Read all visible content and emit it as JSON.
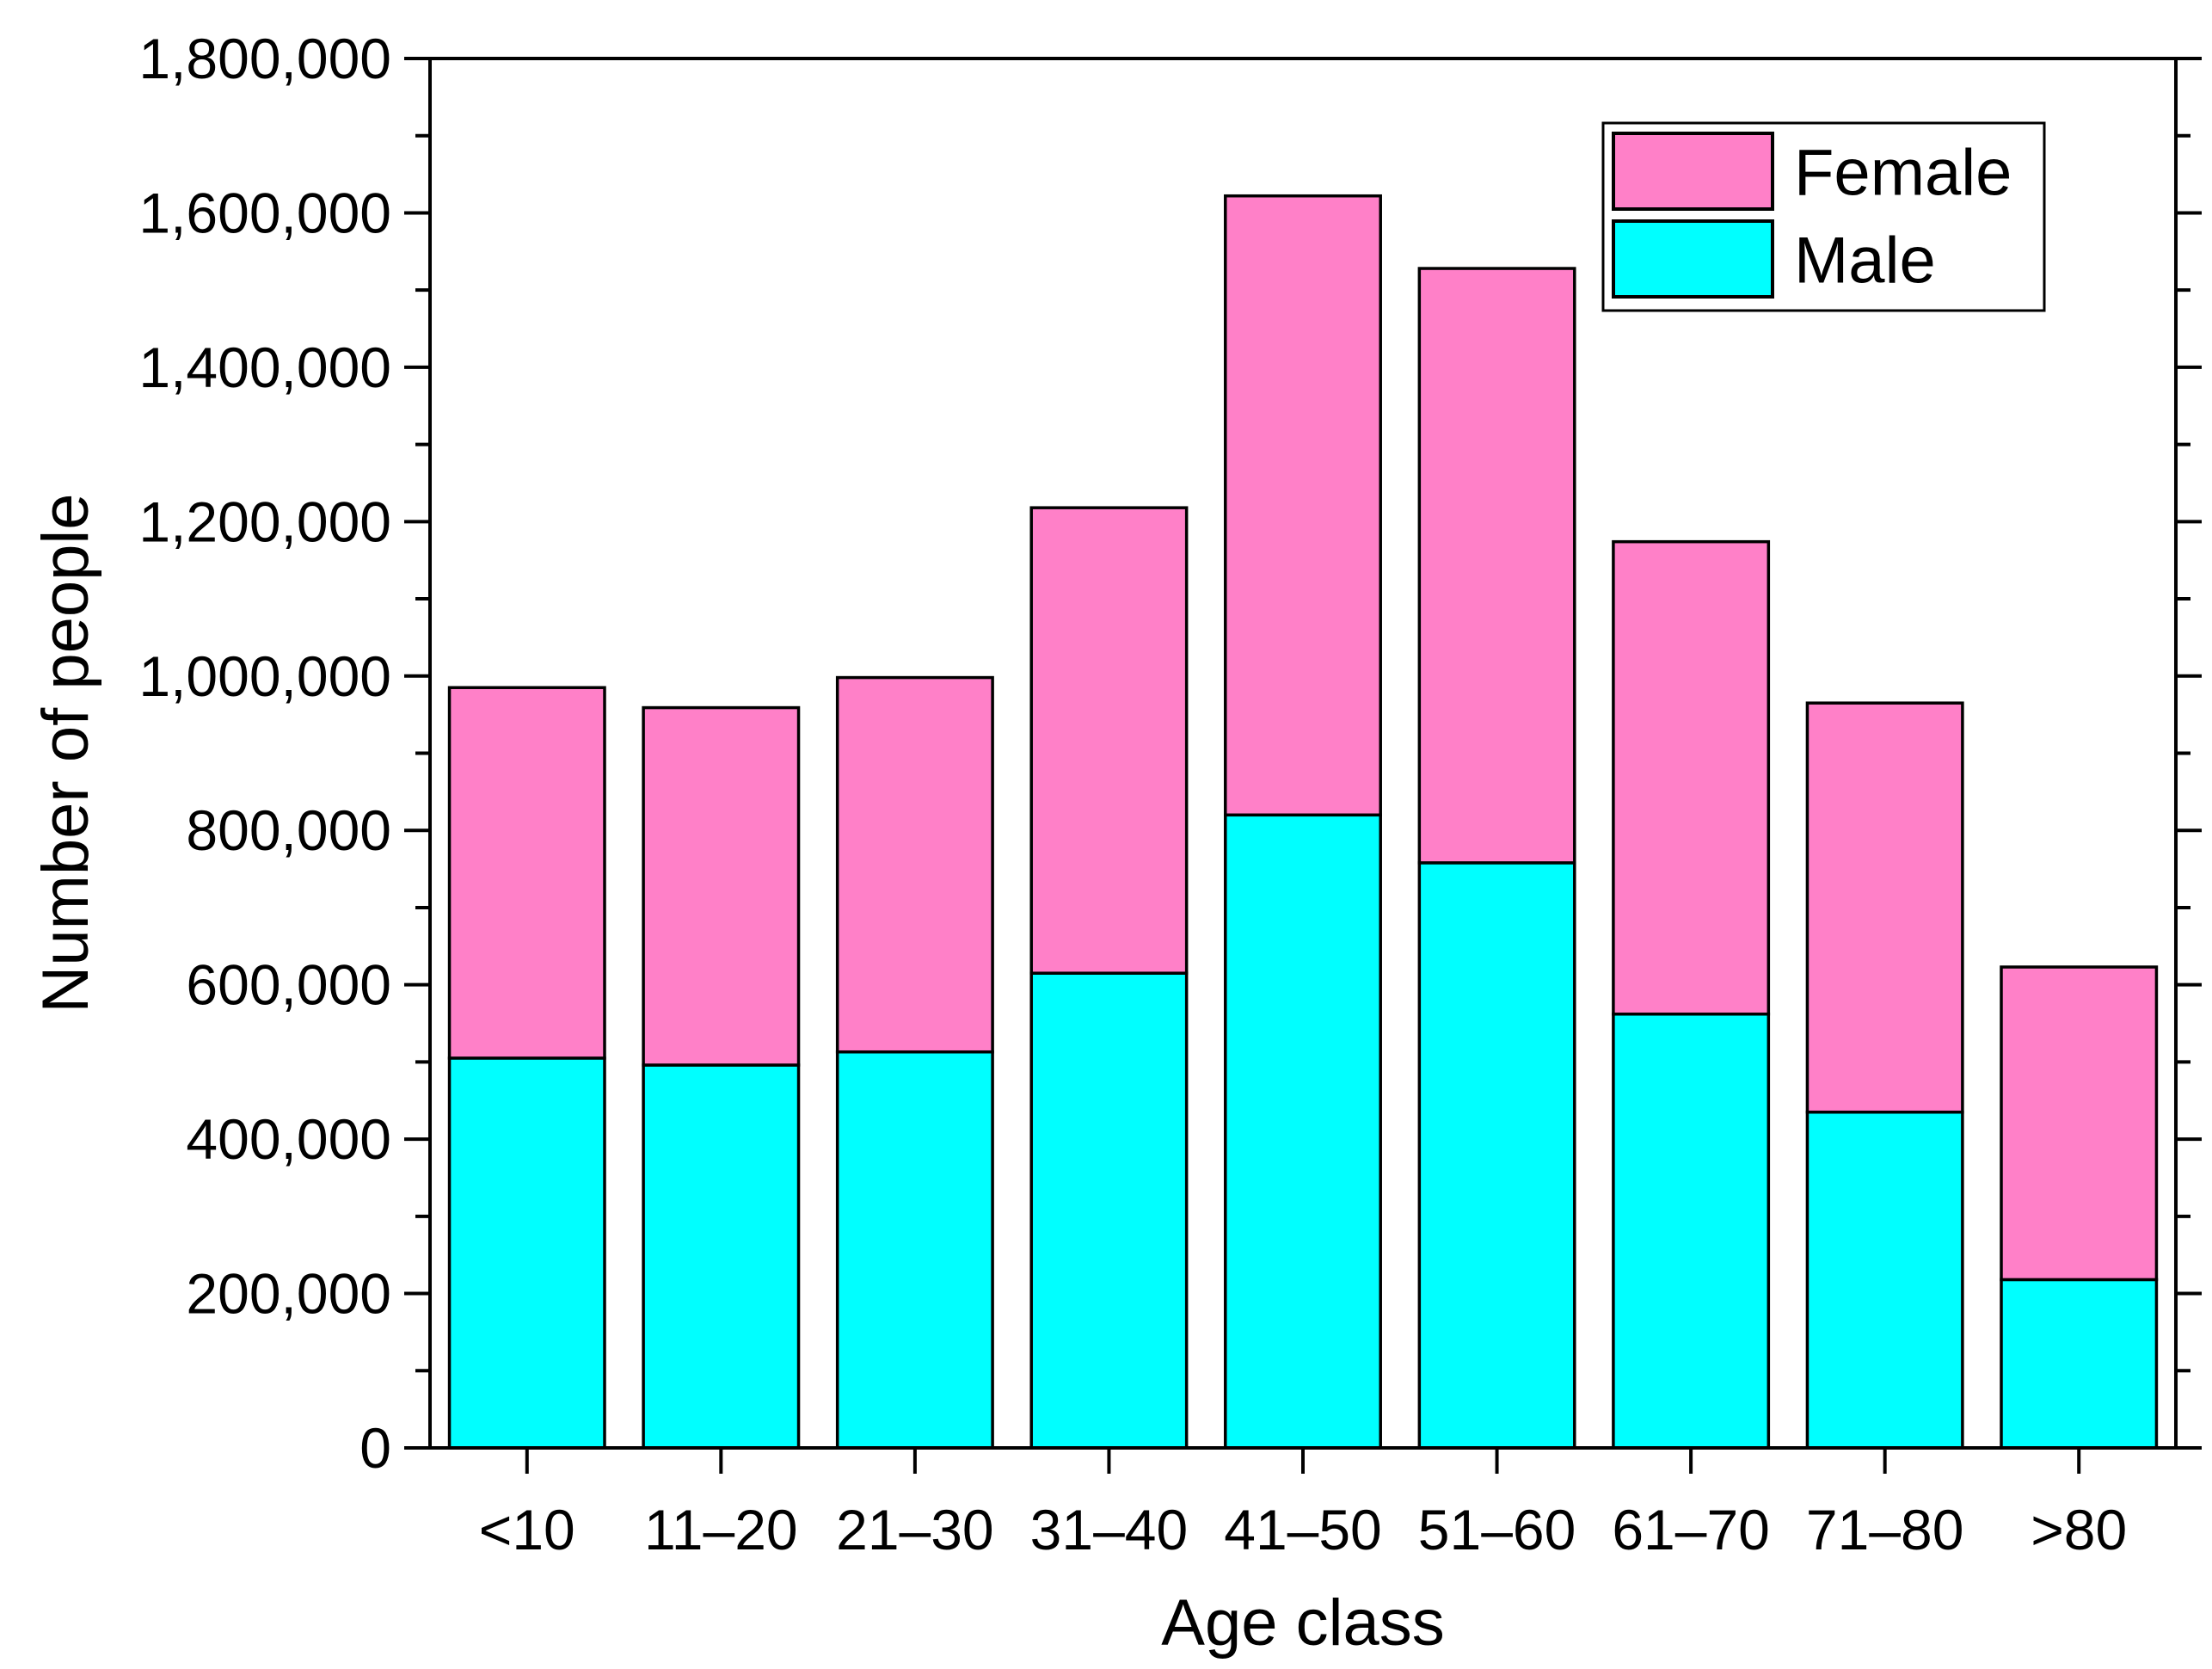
{
  "chart_data": {
    "type": "bar",
    "stacked": true,
    "title": "",
    "xlabel": "Age class",
    "ylabel": "Number of people",
    "categories": [
      "<10",
      "11–20",
      "21–30",
      "31–40",
      "41–50",
      "51–60",
      "61–70",
      "71–80",
      ">80"
    ],
    "series": [
      {
        "name": "Male",
        "color": "#00FFFF",
        "values": [
          505000,
          496000,
          513000,
          615000,
          820000,
          758000,
          562000,
          435000,
          218000
        ]
      },
      {
        "name": "Female",
        "color": "#FF80C8",
        "values": [
          480000,
          463000,
          485000,
          603000,
          802000,
          770000,
          612000,
          530000,
          405000
        ]
      }
    ],
    "ylim": [
      0,
      1800000
    ],
    "yticks": [
      0,
      200000,
      400000,
      600000,
      800000,
      1000000,
      1200000,
      1400000,
      1600000,
      1800000
    ],
    "ytick_labels": [
      "0",
      "200,000",
      "400,000",
      "600,000",
      "800,000",
      "1,000,000",
      "1,200,000",
      "1,400,000",
      "1,600,000",
      "1,800,000"
    ],
    "grid": false,
    "legend": {
      "position": "top-right",
      "entries": [
        "Female",
        "Male"
      ]
    }
  }
}
